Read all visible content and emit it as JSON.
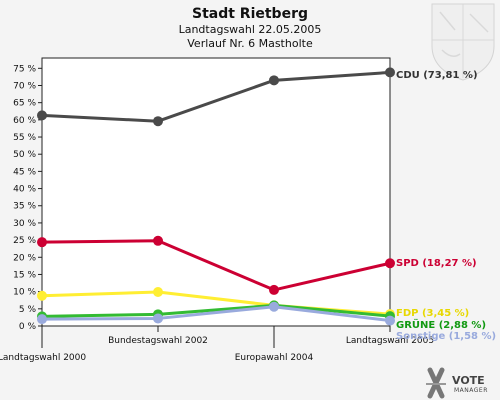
{
  "header": {
    "title": "Stadt Rietberg",
    "subtitle": "Landtagswahl 22.05.2005",
    "subtitle2": "Verlauf Nr. 6 Mastholte"
  },
  "branding": {
    "name": "VOTE",
    "sub": "MANAGER"
  },
  "chart_data": {
    "type": "line",
    "title": "Stadt Rietberg",
    "categories": [
      "Landtagswahl 2000",
      "Bundestagswahl 2002",
      "Europawahl 2004",
      "Landtagswahl 2005"
    ],
    "yticks": [
      "0 %",
      "5 %",
      "10 %",
      "15 %",
      "20 %",
      "25 %",
      "30 %",
      "35 %",
      "40 %",
      "45 %",
      "50 %",
      "55 %",
      "60 %",
      "65 %",
      "70 %",
      "75 %"
    ],
    "ylim": [
      0,
      78
    ],
    "grid": false,
    "series": [
      {
        "name": "CDU",
        "end_label": "CDU (73,81 %)",
        "color": "#4a4a4a",
        "label_color": "#333333",
        "values": [
          61.3,
          59.6,
          71.5,
          73.81
        ]
      },
      {
        "name": "SPD",
        "end_label": "SPD (18,27 %)",
        "color": "#cc0033",
        "label_color": "#cc0033",
        "values": [
          24.4,
          24.8,
          10.5,
          18.27
        ]
      },
      {
        "name": "FDP",
        "end_label": "FDP (3,45 %)",
        "color": "#ffee33",
        "label_color": "#e8d800",
        "values": [
          8.8,
          9.9,
          6.0,
          3.45
        ]
      },
      {
        "name": "GRÜNE",
        "end_label": "GRÜNE (2,88 %)",
        "color": "#33bb33",
        "label_color": "#119911",
        "values": [
          2.8,
          3.4,
          6.0,
          2.88
        ]
      },
      {
        "name": "Sonstige",
        "end_label": "Sonstige (1,58 %)",
        "color": "#99aadd",
        "label_color": "#99aadd",
        "values": [
          2.0,
          2.2,
          5.6,
          1.58
        ]
      }
    ]
  }
}
